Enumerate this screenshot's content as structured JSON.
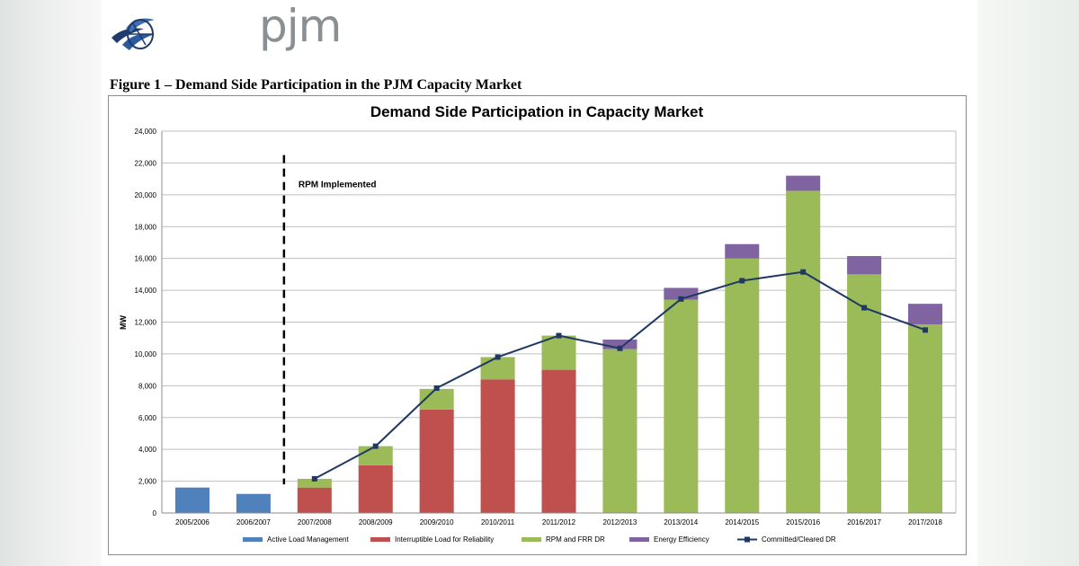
{
  "brand": {
    "logo_text": "pjm"
  },
  "figure_caption": "Figure 1 – Demand Side Participation in the PJM Capacity Market",
  "chart_data": {
    "type": "bar",
    "stacked": true,
    "title": "Demand Side Participation  in Capacity Market",
    "xlabel": "",
    "ylabel": "MW",
    "ylim": [
      0,
      24000
    ],
    "yticks": [
      0,
      2000,
      4000,
      6000,
      8000,
      10000,
      12000,
      14000,
      16000,
      18000,
      20000,
      22000,
      24000
    ],
    "ytick_labels": [
      "0",
      "2,000",
      "4,000",
      "6,000",
      "8,000",
      "10,000",
      "12,000",
      "14,000",
      "16,000",
      "18,000",
      "20,000",
      "22,000",
      "24,000"
    ],
    "grid": true,
    "legend_position": "bottom",
    "categories": [
      "2005/2006",
      "2006/2007",
      "2007/2008",
      "2008/2009",
      "2009/2010",
      "2010/2011",
      "2011/2012",
      "2012/2013",
      "2013/2014",
      "2014/2015",
      "2015/2016",
      "2016/2017",
      "2017/2018"
    ],
    "series": [
      {
        "name": "Active Load Management",
        "color": "#4f81bd",
        "values": [
          1600,
          1200,
          0,
          0,
          0,
          0,
          0,
          0,
          0,
          0,
          0,
          0,
          0
        ]
      },
      {
        "name": "Interruptible Load for Reliability",
        "color": "#c0504d",
        "values": [
          0,
          0,
          1600,
          3000,
          6500,
          8400,
          9000,
          0,
          0,
          0,
          0,
          0,
          0
        ]
      },
      {
        "name": "RPM  and FRR DR",
        "color": "#9bbb59",
        "values": [
          0,
          0,
          550,
          1200,
          1300,
          1400,
          2150,
          10300,
          13400,
          16000,
          20250,
          15000,
          11850
        ]
      },
      {
        "name": "Energy Efficiency",
        "color": "#8064a2",
        "values": [
          0,
          0,
          0,
          0,
          0,
          0,
          0,
          600,
          750,
          900,
          950,
          1150,
          1300
        ]
      }
    ],
    "line_series": {
      "name": "Committed/Cleared DR",
      "color": "#1f3864",
      "start_index": 2,
      "values": [
        2150,
        4200,
        7850,
        9800,
        11150,
        10350,
        13450,
        14600,
        15150,
        12900,
        11500
      ]
    },
    "annotation": {
      "text": "RPM Implemented",
      "marker_position": "between 2006/2007 and 2007/2008"
    }
  }
}
